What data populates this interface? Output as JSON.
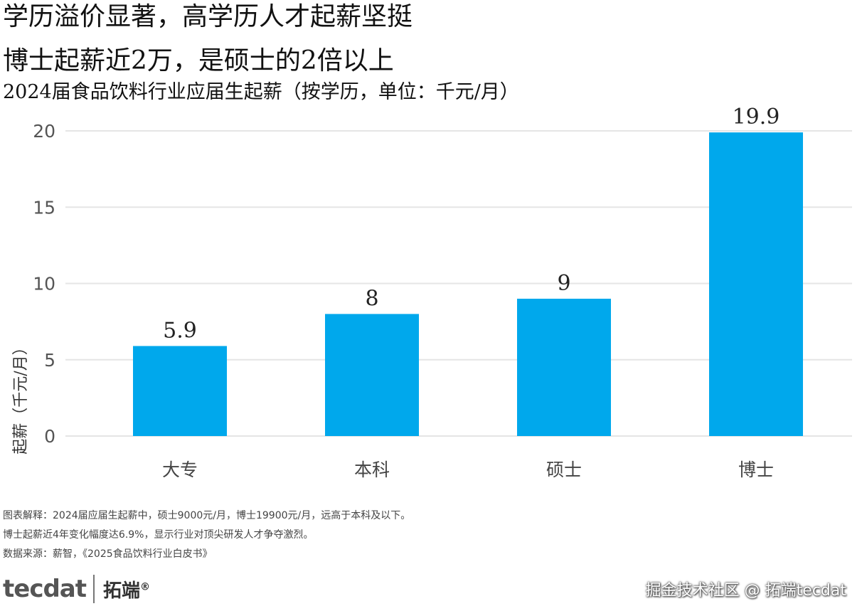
{
  "header": {
    "title_line1": "学历溢价显著，高学历人才起薪坚挺",
    "title_line2": "博士起薪近2万，是硕士的2倍以上",
    "subtitle": "2024届食品饮料行业应届生起薪（按学历，单位：千元/月）"
  },
  "chart_data": {
    "type": "bar",
    "categories": [
      "大专",
      "本科",
      "硕士",
      "博士"
    ],
    "values": [
      5.9,
      8,
      9,
      19.9
    ],
    "data_labels": [
      "5.9",
      "8",
      "9",
      "19.9"
    ],
    "ylabel": "起薪（千元/月）",
    "xlabel": "",
    "ylim": [
      0,
      20
    ],
    "yticks": [
      0,
      5,
      10,
      15,
      20
    ],
    "grid": true,
    "bar_color": "#00A8EC",
    "grid_color": "#E5E5E5",
    "legend": "none"
  },
  "notes": {
    "line1": "图表解释：2024届应届生起薪中，硕士9000元/月，博士19900元/月，远高于本科及以下。",
    "line2": "博士起薪近4年变化幅度达6.9%，显示行业对顶尖研发人才争夺激烈。",
    "line3": "数据来源：薪智，《2025食品饮料行业白皮书》"
  },
  "branding": {
    "logo_en": "tecdat",
    "logo_cn": "拓端",
    "registered": "®",
    "watermark": "掘金技术社区 @ 拓端tecdat"
  }
}
